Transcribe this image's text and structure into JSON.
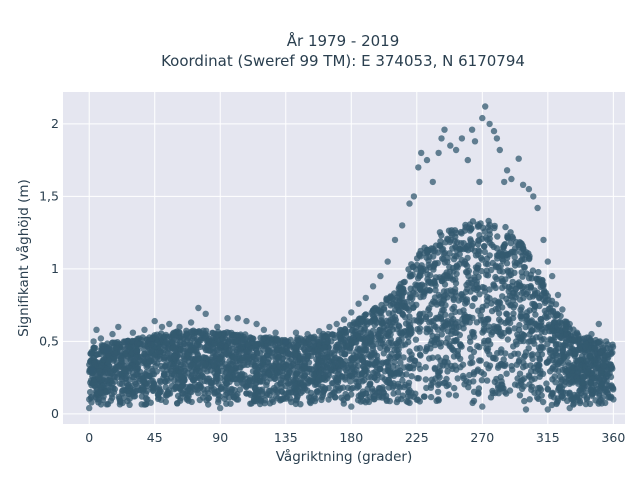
{
  "colors": {
    "plot_bg": "#e5e6f0",
    "grid": "#ffffff",
    "marker": "#335a70",
    "text": "#2a3f4f"
  },
  "chart_data": {
    "type": "scatter",
    "title": "År 1979 - 2019",
    "subtitle": "Koordinat (Sweref 99 TM): E 374053, N 6170794",
    "xlabel": "Vågriktning (grader)",
    "ylabel": "Signifikant våghöjd (m)",
    "xlim": [
      -18,
      368
    ],
    "ylim": [
      -0.07,
      2.22
    ],
    "x_ticks": [
      0,
      45,
      90,
      135,
      180,
      225,
      270,
      315,
      360
    ],
    "x_tick_labels": [
      "0",
      "45",
      "90",
      "135",
      "180",
      "225",
      "270",
      "315",
      "360"
    ],
    "y_ticks": [
      0,
      0.5,
      1,
      1.5,
      2
    ],
    "y_tick_labels": [
      "0",
      "0,5",
      "1",
      "1,5",
      "2"
    ],
    "grid": true,
    "legend": "none",
    "envelope": {
      "description_x": [
        0,
        10,
        20,
        30,
        45,
        60,
        75,
        90,
        105,
        120,
        135,
        150,
        165,
        180,
        195,
        210,
        225,
        240,
        255,
        270,
        285,
        300,
        315,
        330,
        345,
        360
      ],
      "dense_min": [
        0.06,
        0.06,
        0.06,
        0.06,
        0.06,
        0.06,
        0.06,
        0.06,
        0.06,
        0.06,
        0.06,
        0.06,
        0.06,
        0.07,
        0.07,
        0.07,
        0.07,
        0.07,
        0.07,
        0.07,
        0.06,
        0.05,
        0.04,
        0.05,
        0.06,
        0.07
      ],
      "dense_max": [
        0.47,
        0.48,
        0.5,
        0.52,
        0.55,
        0.57,
        0.58,
        0.57,
        0.55,
        0.53,
        0.52,
        0.53,
        0.56,
        0.62,
        0.72,
        0.85,
        1.1,
        1.25,
        1.3,
        1.35,
        1.3,
        1.15,
        0.85,
        0.6,
        0.52,
        0.48
      ]
    },
    "series": [
      {
        "values": [
          [
            0,
            0.1
          ],
          [
            2,
            0.3
          ],
          [
            3,
            0.5
          ],
          [
            5,
            0.58
          ],
          [
            8,
            0.52
          ],
          [
            12,
            0.44
          ],
          [
            16,
            0.55
          ],
          [
            20,
            0.6
          ],
          [
            25,
            0.5
          ],
          [
            30,
            0.56
          ],
          [
            38,
            0.58
          ],
          [
            45,
            0.64
          ],
          [
            50,
            0.6
          ],
          [
            55,
            0.62
          ],
          [
            62,
            0.6
          ],
          [
            70,
            0.63
          ],
          [
            75,
            0.73
          ],
          [
            80,
            0.69
          ],
          [
            88,
            0.6
          ],
          [
            95,
            0.66
          ],
          [
            102,
            0.66
          ],
          [
            108,
            0.64
          ],
          [
            115,
            0.62
          ],
          [
            120,
            0.58
          ],
          [
            128,
            0.56
          ],
          [
            135,
            0.5
          ],
          [
            142,
            0.56
          ],
          [
            150,
            0.55
          ],
          [
            158,
            0.57
          ],
          [
            165,
            0.6
          ],
          [
            170,
            0.62
          ],
          [
            175,
            0.65
          ],
          [
            180,
            0.7
          ],
          [
            185,
            0.76
          ],
          [
            190,
            0.8
          ],
          [
            195,
            0.88
          ],
          [
            200,
            0.95
          ],
          [
            205,
            1.05
          ],
          [
            210,
            1.2
          ],
          [
            215,
            1.3
          ],
          [
            220,
            1.45
          ],
          [
            223,
            1.5
          ],
          [
            226,
            1.7
          ],
          [
            228,
            1.8
          ],
          [
            232,
            1.75
          ],
          [
            236,
            1.6
          ],
          [
            240,
            1.8
          ],
          [
            242,
            1.9
          ],
          [
            244,
            1.96
          ],
          [
            248,
            1.85
          ],
          [
            252,
            1.82
          ],
          [
            256,
            1.9
          ],
          [
            260,
            1.75
          ],
          [
            263,
            1.96
          ],
          [
            265,
            1.88
          ],
          [
            268,
            1.6
          ],
          [
            270,
            2.04
          ],
          [
            272,
            2.12
          ],
          [
            275,
            2.0
          ],
          [
            278,
            1.95
          ],
          [
            280,
            1.9
          ],
          [
            282,
            1.82
          ],
          [
            285,
            1.6
          ],
          [
            287,
            1.68
          ],
          [
            290,
            1.62
          ],
          [
            295,
            1.76
          ],
          [
            298,
            1.58
          ],
          [
            302,
            1.55
          ],
          [
            305,
            1.5
          ],
          [
            308,
            1.42
          ],
          [
            312,
            1.2
          ],
          [
            315,
            1.05
          ],
          [
            318,
            0.95
          ],
          [
            322,
            0.82
          ],
          [
            325,
            0.72
          ],
          [
            330,
            0.62
          ],
          [
            335,
            0.56
          ],
          [
            340,
            0.52
          ],
          [
            345,
            0.55
          ],
          [
            350,
            0.62
          ],
          [
            355,
            0.5
          ],
          [
            358,
            0.45
          ],
          [
            360,
            0.1
          ],
          [
            0,
            0.04
          ],
          [
            90,
            0.04
          ],
          [
            180,
            0.05
          ],
          [
            270,
            0.05
          ],
          [
            300,
            0.03
          ],
          [
            315,
            0.03
          ],
          [
            330,
            0.04
          ]
        ]
      }
    ]
  }
}
